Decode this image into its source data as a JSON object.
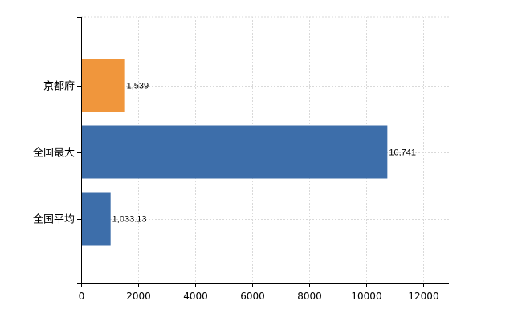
{
  "chart_data": {
    "type": "bar",
    "orientation": "horizontal",
    "categories": [
      "京都府",
      "全国最大",
      "全国平均"
    ],
    "values": [
      1539,
      10741,
      1033.13
    ],
    "value_labels": [
      "1,539",
      "10,741",
      "1,033.13"
    ],
    "colors": [
      "#f0963c",
      "#3d6eaa",
      "#3d6eaa"
    ],
    "xlim": [
      0,
      12900
    ],
    "xticks": [
      0,
      2000,
      4000,
      6000,
      8000,
      10000,
      12000
    ],
    "xtick_labels": [
      "0",
      "2000",
      "4000",
      "6000",
      "8000",
      "10000",
      "12000"
    ],
    "grid": true,
    "title": "",
    "xlabel": "",
    "ylabel": ""
  }
}
